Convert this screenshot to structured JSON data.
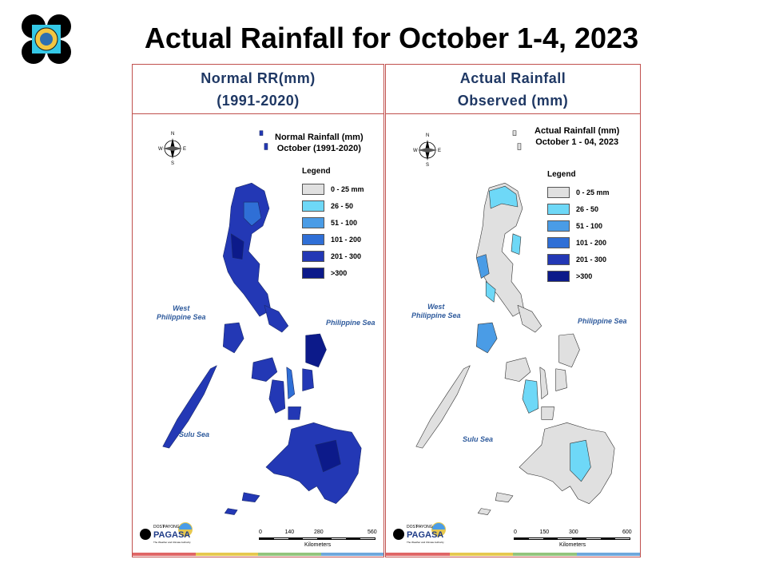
{
  "slide": {
    "title": "Actual Rainfall for October 1-4, 2023",
    "logo_icon": "dost-seal-icon"
  },
  "left_panel": {
    "header_line1": "Normal RR(mm)",
    "header_line2": "(1991-2020)",
    "map_title_line1": "Normal Rainfall (mm)",
    "map_title_line2": "October (1991-2020)",
    "scale_ticks": [
      "0",
      "140",
      "280",
      "560"
    ],
    "scale_unit": "Kilometers"
  },
  "right_panel": {
    "header_line1": "Actual Rainfall",
    "header_line2": "Observed (mm)",
    "map_title_line1": "Actual Rainfall (mm)",
    "map_title_line2": "October 1 - 04, 2023",
    "scale_ticks": [
      "0",
      "150",
      "300",
      "600"
    ],
    "scale_unit": "Kilometers"
  },
  "legend": {
    "title": "Legend",
    "items": [
      {
        "label": "0 - 25 mm",
        "color": "#e0e0e0"
      },
      {
        "label": "26 - 50",
        "color": "#6ed8f7"
      },
      {
        "label": "51 - 100",
        "color": "#4a9ce6"
      },
      {
        "label": "101 - 200",
        "color": "#2f6fd6"
      },
      {
        "label": "201 - 300",
        "color": "#2338b5"
      },
      {
        "label": ">300",
        "color": "#0c1a8a"
      }
    ]
  },
  "seas": {
    "west_line1": "West",
    "west_line2": "Philippine Sea",
    "east": "Philippine Sea",
    "south": "Sulu Sea"
  },
  "compass": {
    "n": "N",
    "s": "S",
    "e": "E",
    "w": "W"
  },
  "pagasa": {
    "brand": "PAGASA",
    "small": "DOST",
    "tag": "PAYONG",
    "tagline": "The Weather and Climate Authority"
  },
  "footer_colors": [
    "#e06666",
    "#e6c84f",
    "#93c47d",
    "#6fa8dc"
  ]
}
